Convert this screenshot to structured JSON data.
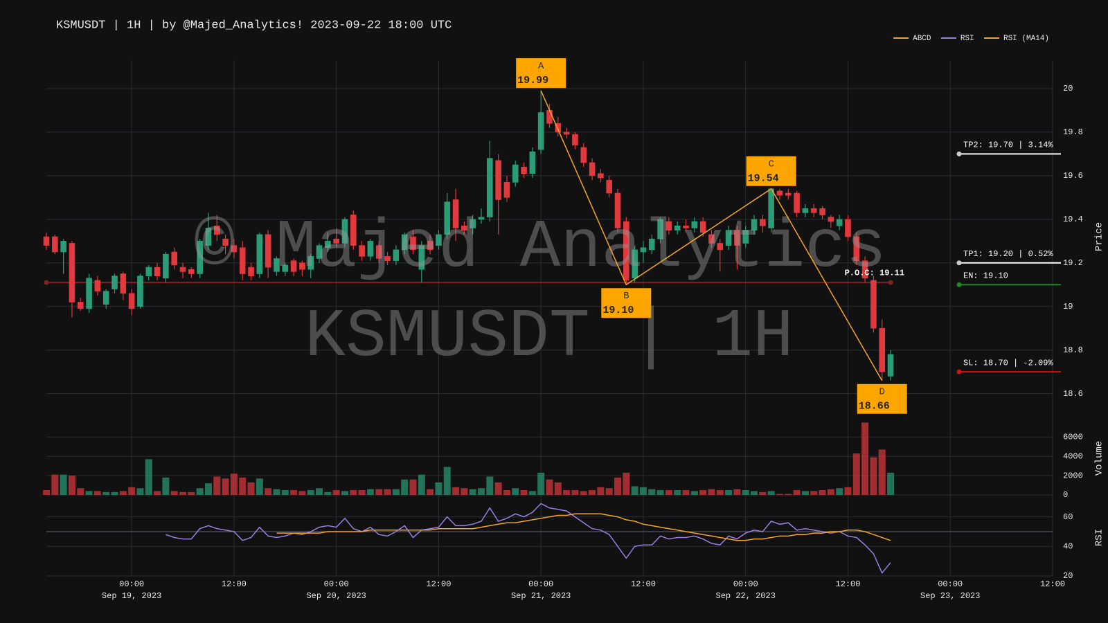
{
  "chart_data": {
    "type": "candlestick",
    "title": "KSMUSDT | 1H | by @Majed_Analytics!  2023-09-22 18:00 UTC",
    "watermarks": [
      "© Majed Analytics",
      "KSMUSDT | 1H"
    ],
    "legend": "top-right",
    "up_color": "#2a9d78",
    "down_color": "#e0393e",
    "x": [
      "2023-09-18 14:00",
      "2023-09-18 15:00",
      "2023-09-18 16:00",
      "2023-09-18 17:00",
      "2023-09-18 18:00",
      "2023-09-18 19:00",
      "2023-09-18 20:00",
      "2023-09-18 21:00",
      "2023-09-18 22:00",
      "2023-09-18 23:00",
      "2023-09-19 00:00",
      "2023-09-19 01:00",
      "2023-09-19 02:00",
      "2023-09-19 03:00",
      "2023-09-19 04:00",
      "2023-09-19 05:00",
      "2023-09-19 06:00",
      "2023-09-19 07:00",
      "2023-09-19 08:00",
      "2023-09-19 09:00",
      "2023-09-19 10:00",
      "2023-09-19 11:00",
      "2023-09-19 12:00",
      "2023-09-19 13:00",
      "2023-09-19 14:00",
      "2023-09-19 15:00",
      "2023-09-19 16:00",
      "2023-09-19 17:00",
      "2023-09-19 18:00",
      "2023-09-19 19:00",
      "2023-09-19 20:00",
      "2023-09-19 21:00",
      "2023-09-19 22:00",
      "2023-09-19 23:00",
      "2023-09-20 00:00",
      "2023-09-20 01:00",
      "2023-09-20 02:00",
      "2023-09-20 03:00",
      "2023-09-20 04:00",
      "2023-09-20 05:00",
      "2023-09-20 06:00",
      "2023-09-20 07:00",
      "2023-09-20 08:00",
      "2023-09-20 09:00",
      "2023-09-20 10:00",
      "2023-09-20 11:00",
      "2023-09-20 12:00",
      "2023-09-20 13:00",
      "2023-09-20 14:00",
      "2023-09-20 15:00",
      "2023-09-20 16:00",
      "2023-09-20 17:00",
      "2023-09-20 18:00",
      "2023-09-20 19:00",
      "2023-09-20 20:00",
      "2023-09-20 21:00",
      "2023-09-20 22:00",
      "2023-09-20 23:00",
      "2023-09-21 00:00",
      "2023-09-21 01:00",
      "2023-09-21 02:00",
      "2023-09-21 03:00",
      "2023-09-21 04:00",
      "2023-09-21 05:00",
      "2023-09-21 06:00",
      "2023-09-21 07:00",
      "2023-09-21 08:00",
      "2023-09-21 09:00",
      "2023-09-21 10:00",
      "2023-09-21 11:00",
      "2023-09-21 12:00",
      "2023-09-21 13:00",
      "2023-09-21 14:00",
      "2023-09-21 15:00",
      "2023-09-21 16:00",
      "2023-09-21 17:00",
      "2023-09-21 18:00",
      "2023-09-21 19:00",
      "2023-09-21 20:00",
      "2023-09-21 21:00",
      "2023-09-21 22:00",
      "2023-09-21 23:00",
      "2023-09-22 00:00",
      "2023-09-22 01:00",
      "2023-09-22 02:00",
      "2023-09-22 03:00",
      "2023-09-22 04:00",
      "2023-09-22 05:00",
      "2023-09-22 06:00",
      "2023-09-22 07:00",
      "2023-09-22 08:00",
      "2023-09-22 09:00",
      "2023-09-22 10:00",
      "2023-09-22 11:00",
      "2023-09-22 12:00",
      "2023-09-22 13:00",
      "2023-09-22 14:00",
      "2023-09-22 15:00",
      "2023-09-22 16:00",
      "2023-09-22 17:00"
    ],
    "open": [
      19.32,
      19.32,
      19.25,
      19.29,
      19.02,
      18.99,
      19.12,
      19.01,
      19.08,
      19.15,
      19.06,
      19.0,
      19.14,
      19.18,
      19.13,
      19.25,
      19.18,
      19.17,
      19.15,
      19.28,
      19.37,
      19.31,
      19.28,
      19.27,
      19.18,
      19.15,
      19.33,
      19.16,
      19.16,
      19.21,
      19.2,
      19.17,
      19.22,
      19.27,
      19.31,
      19.29,
      19.42,
      19.28,
      19.23,
      19.28,
      19.23,
      19.21,
      19.26,
      19.32,
      19.17,
      19.3,
      19.28,
      19.33,
      19.49,
      19.37,
      19.36,
      19.4,
      19.41,
      19.67,
      19.57,
      19.57,
      19.64,
      19.61,
      19.72,
      19.9,
      19.84,
      19.8,
      19.79,
      19.73,
      19.66,
      19.61,
      19.58,
      19.52,
      19.39,
      19.13,
      19.25,
      19.26,
      19.31,
      19.39,
      19.35,
      19.37,
      19.36,
      19.39,
      19.33,
      19.29,
      19.28,
      19.35,
      19.29,
      19.35,
      19.4,
      19.36,
      19.53,
      19.52,
      19.52,
      19.43,
      19.45,
      19.45,
      19.41,
      19.37,
      19.4,
      19.32,
      19.21,
      19.12,
      18.9,
      18.68
    ],
    "high": [
      19.34,
      19.33,
      19.31,
      19.3,
      19.04,
      19.15,
      19.14,
      19.08,
      19.15,
      19.16,
      19.08,
      19.15,
      19.19,
      19.2,
      19.25,
      19.27,
      19.2,
      19.18,
      19.31,
      19.43,
      19.42,
      19.33,
      19.31,
      19.3,
      19.2,
      19.34,
      19.35,
      19.23,
      19.2,
      19.22,
      19.21,
      19.24,
      19.29,
      19.34,
      19.36,
      19.41,
      19.44,
      19.3,
      19.31,
      19.3,
      19.25,
      19.28,
      19.34,
      19.35,
      19.3,
      19.33,
      19.35,
      19.52,
      19.54,
      19.39,
      19.42,
      19.45,
      19.76,
      19.7,
      19.6,
      19.67,
      19.66,
      19.73,
      19.99,
      19.93,
      19.87,
      19.82,
      19.8,
      19.75,
      19.68,
      19.63,
      19.6,
      19.54,
      19.41,
      19.28,
      19.3,
      19.33,
      19.41,
      19.41,
      19.39,
      19.4,
      19.41,
      19.41,
      19.35,
      19.31,
      19.37,
      19.37,
      19.37,
      19.42,
      19.42,
      19.54,
      19.54,
      19.54,
      19.53,
      19.47,
      19.47,
      19.46,
      19.42,
      19.42,
      19.42,
      19.34,
      19.23,
      19.14,
      18.94,
      18.8
    ],
    "low": [
      19.26,
      19.24,
      19.15,
      18.95,
      18.98,
      18.97,
      19.05,
      18.99,
      19.06,
      19.03,
      18.96,
      18.99,
      19.12,
      19.12,
      19.11,
      19.17,
      19.13,
      19.13,
      19.13,
      19.26,
      19.3,
      19.24,
      19.22,
      19.12,
      19.12,
      19.13,
      19.13,
      19.14,
      19.14,
      19.14,
      19.14,
      19.13,
      19.2,
      19.25,
      19.27,
      19.27,
      19.26,
      19.21,
      19.21,
      19.2,
      19.19,
      19.19,
      19.24,
      19.24,
      19.11,
      19.24,
      19.26,
      19.31,
      19.3,
      19.33,
      19.33,
      19.38,
      19.39,
      19.33,
      19.48,
      19.55,
      19.59,
      19.59,
      19.7,
      19.82,
      19.78,
      19.77,
      19.72,
      19.64,
      19.58,
      19.57,
      19.5,
      19.34,
      19.1,
      19.11,
      19.2,
      19.24,
      19.29,
      19.33,
      19.33,
      19.34,
      19.34,
      19.32,
      19.27,
      19.16,
      19.26,
      19.17,
      19.27,
      19.33,
      19.34,
      19.34,
      19.49,
      19.49,
      19.41,
      19.41,
      19.41,
      19.4,
      19.36,
      19.35,
      19.3,
      19.19,
      19.11,
      18.88,
      18.66,
      18.66
    ],
    "close": [
      19.28,
      19.25,
      19.3,
      19.02,
      18.99,
      19.13,
      19.07,
      19.07,
      19.14,
      19.06,
      18.99,
      19.14,
      19.18,
      19.14,
      19.24,
      19.19,
      19.16,
      19.15,
      19.3,
      19.36,
      19.33,
      19.28,
      19.25,
      19.15,
      19.14,
      19.33,
      19.18,
      19.22,
      19.19,
      19.16,
      19.17,
      19.23,
      19.28,
      19.3,
      19.29,
      19.4,
      19.28,
      19.23,
      19.3,
      19.22,
      19.21,
      19.26,
      19.33,
      19.26,
      19.28,
      19.26,
      19.33,
      19.48,
      19.36,
      19.35,
      19.4,
      19.41,
      19.68,
      19.49,
      19.5,
      19.65,
      19.61,
      19.71,
      19.89,
      19.84,
      19.8,
      19.79,
      19.74,
      19.66,
      19.6,
      19.59,
      19.52,
      19.36,
      19.12,
      19.26,
      19.27,
      19.31,
      19.4,
      19.35,
      19.37,
      19.36,
      19.39,
      19.34,
      19.29,
      19.26,
      19.35,
      19.28,
      19.35,
      19.4,
      19.37,
      19.54,
      19.51,
      19.51,
      19.43,
      19.45,
      19.43,
      19.42,
      19.39,
      19.4,
      19.32,
      19.21,
      19.13,
      18.9,
      18.7,
      18.78
    ],
    "xlim": [
      "2023-09-18 14:00",
      "2023-09-23 12:00"
    ],
    "xticks": [
      {
        "value": "2023-09-19 00:00",
        "label": "00:00",
        "sublabel": "Sep 19, 2023"
      },
      {
        "value": "2023-09-19 12:00",
        "label": "12:00"
      },
      {
        "value": "2023-09-20 00:00",
        "label": "00:00",
        "sublabel": "Sep 20, 2023"
      },
      {
        "value": "2023-09-20 12:00",
        "label": "12:00"
      },
      {
        "value": "2023-09-21 00:00",
        "label": "00:00",
        "sublabel": "Sep 21, 2023"
      },
      {
        "value": "2023-09-21 12:00",
        "label": "12:00"
      },
      {
        "value": "2023-09-22 00:00",
        "label": "00:00",
        "sublabel": "Sep 22, 2023"
      },
      {
        "value": "2023-09-22 12:00",
        "label": "12:00"
      },
      {
        "value": "2023-09-23 00:00",
        "label": "00:00",
        "sublabel": "Sep 23, 2023"
      },
      {
        "value": "2023-09-23 12:00",
        "label": "12:00"
      }
    ],
    "ylabel": "Price",
    "ylim": [
      18.51,
      20.13
    ],
    "yticks": [
      18.6,
      18.8,
      19,
      19.2,
      19.4,
      19.6,
      19.8,
      20
    ],
    "volume": {
      "ylabel": "Volume",
      "ylim": [
        0,
        7600
      ],
      "yticks": [
        0,
        2000,
        4000,
        6000
      ],
      "values": [
        500,
        2100,
        2100,
        2000,
        700,
        400,
        400,
        300,
        300,
        400,
        800,
        700,
        3700,
        400,
        1800,
        400,
        300,
        300,
        700,
        1200,
        1900,
        1700,
        2200,
        1800,
        1300,
        1700,
        700,
        600,
        500,
        500,
        400,
        500,
        700,
        300,
        500,
        400,
        500,
        500,
        600,
        600,
        600,
        600,
        1600,
        1600,
        2100,
        600,
        1300,
        2900,
        800,
        700,
        600,
        700,
        1900,
        1300,
        500,
        700,
        500,
        400,
        2300,
        1600,
        1300,
        500,
        500,
        400,
        500,
        800,
        700,
        1800,
        2300,
        900,
        800,
        600,
        500,
        500,
        500,
        500,
        400,
        500,
        600,
        500,
        500,
        600,
        500,
        400,
        300,
        400,
        100,
        100,
        500,
        400,
        400,
        500,
        600,
        700,
        800,
        4300,
        7500,
        3900,
        4700,
        2300
      ]
    },
    "rsi": {
      "ylabel": "RSI",
      "ylim": [
        20,
        72
      ],
      "yticks": [
        20,
        40,
        60
      ],
      "reference": 50,
      "series": [
        {
          "name": "RSI",
          "color": "#9b7fe6",
          "values": [
            null,
            null,
            null,
            null,
            null,
            null,
            null,
            null,
            null,
            null,
            null,
            null,
            null,
            null,
            48,
            46,
            45,
            45,
            52,
            54,
            52,
            51,
            50,
            44,
            46,
            53,
            47,
            46,
            47,
            49,
            48,
            50,
            53,
            54,
            53,
            59,
            52,
            50,
            53,
            48,
            47,
            50,
            54,
            46,
            51,
            52,
            53,
            60,
            54,
            54,
            55,
            57,
            66,
            57,
            59,
            62,
            60,
            63,
            69,
            66,
            65,
            64,
            60,
            56,
            52,
            51,
            48,
            40,
            32,
            40,
            41,
            41,
            47,
            45,
            46,
            46,
            47,
            45,
            42,
            41,
            47,
            45,
            49,
            51,
            50,
            57,
            55,
            56,
            51,
            52,
            51,
            50,
            49,
            50,
            47,
            46,
            41,
            35,
            22,
            29
          ]
        },
        {
          "name": "RSI (MA14)",
          "color": "#f5a623",
          "values": [
            null,
            null,
            null,
            null,
            null,
            null,
            null,
            null,
            null,
            null,
            null,
            null,
            null,
            null,
            null,
            null,
            null,
            null,
            null,
            null,
            null,
            null,
            null,
            null,
            null,
            null,
            null,
            49,
            49,
            49,
            49,
            49,
            49,
            50,
            50,
            50,
            50,
            50,
            51,
            51,
            51,
            51,
            51,
            51,
            51,
            51,
            52,
            52,
            52,
            52,
            52,
            53,
            54,
            55,
            56,
            56,
            57,
            58,
            59,
            60,
            61,
            61,
            62,
            62,
            62,
            62,
            61,
            60,
            58,
            57,
            55,
            54,
            53,
            52,
            51,
            50,
            49,
            48,
            47,
            46,
            45,
            44,
            44,
            45,
            45,
            46,
            47,
            47,
            48,
            48,
            49,
            49,
            50,
            50,
            51,
            51,
            50,
            48,
            46,
            44
          ]
        }
      ]
    },
    "abcd": {
      "name": "ABCD",
      "color": "#f5a623",
      "points": [
        {
          "label": "A",
          "x": "2023-09-21 00:00",
          "value": 19.99,
          "value_label": "19.99"
        },
        {
          "label": "B",
          "x": "2023-09-21 10:00",
          "value": 19.1,
          "value_label": "19.10"
        },
        {
          "label": "C",
          "x": "2023-09-22 03:00",
          "value": 19.54,
          "value_label": "19.54"
        },
        {
          "label": "D",
          "x": "2023-09-22 16:00",
          "value": 18.66,
          "value_label": "18.66"
        }
      ]
    },
    "poc": {
      "label": "P.O.C: 19.11",
      "value": 19.11,
      "color": "#7a2424"
    },
    "levels": [
      {
        "label": "TP2: 19.70 | 3.14%",
        "value": 19.7,
        "color": "#ffffff"
      },
      {
        "label": "TP1: 19.20 | 0.52%",
        "value": 19.2,
        "color": "#ffffff"
      },
      {
        "label": "EN: 19.10",
        "value": 19.1,
        "color": "#1f8a1f"
      },
      {
        "label": "SL: 18.70 | -2.09%",
        "value": 18.7,
        "color": "#cc1515"
      }
    ]
  }
}
